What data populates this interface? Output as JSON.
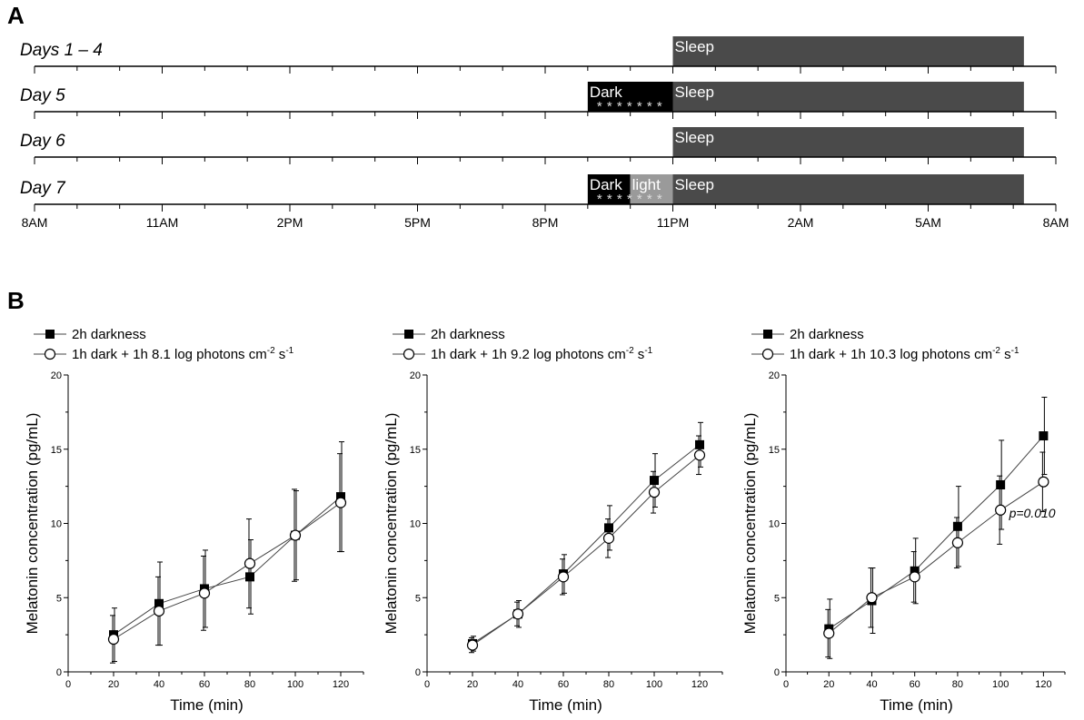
{
  "panel_labels": {
    "a": "A",
    "b": "B"
  },
  "colors": {
    "bar_dark": "#000000",
    "bar_light": "#9a9a9a",
    "bar_sleep": "#4a4a4a",
    "line": "#444444",
    "axis": "#000000"
  },
  "schedule": {
    "start_hour": 8,
    "end_hour": 32,
    "tick_labels": [
      {
        "hour": 8,
        "label": "8AM"
      },
      {
        "hour": 11,
        "label": "11AM"
      },
      {
        "hour": 14,
        "label": "2PM"
      },
      {
        "hour": 17,
        "label": "5PM"
      },
      {
        "hour": 20,
        "label": "8PM"
      },
      {
        "hour": 23,
        "label": "11PM"
      },
      {
        "hour": 26,
        "label": "2AM"
      },
      {
        "hour": 29,
        "label": "5AM"
      },
      {
        "hour": 32,
        "label": "8AM"
      }
    ],
    "rows": [
      {
        "label": "Days 1 – 4",
        "blocks": [
          {
            "kind": "sleep",
            "start": 23,
            "end": 31.25,
            "text": "Sleep"
          }
        ],
        "stars": ""
      },
      {
        "label": "Day 5",
        "blocks": [
          {
            "kind": "dark",
            "start": 21,
            "end": 23,
            "text": "Dark"
          },
          {
            "kind": "sleep",
            "start": 23,
            "end": 31.25,
            "text": "Sleep"
          }
        ],
        "stars": "* * * * * * *"
      },
      {
        "label": "Day 6",
        "blocks": [
          {
            "kind": "sleep",
            "start": 23,
            "end": 31.25,
            "text": "Sleep"
          }
        ],
        "stars": ""
      },
      {
        "label": "Day 7",
        "blocks": [
          {
            "kind": "dark",
            "start": 21,
            "end": 22,
            "text": "Dark"
          },
          {
            "kind": "light",
            "start": 22,
            "end": 23,
            "text": "light"
          },
          {
            "kind": "sleep",
            "start": 23,
            "end": 31.25,
            "text": "Sleep"
          }
        ],
        "stars": "* * * * * * *"
      }
    ]
  },
  "chart_data": [
    {
      "type": "line",
      "xlabel": "Time (min)",
      "ylabel": "Melatonin concentration (pg/mL)",
      "xlim": [
        0,
        130
      ],
      "ylim": [
        0,
        20
      ],
      "xticks": [
        0,
        20,
        40,
        60,
        80,
        100,
        120
      ],
      "yticks": [
        0,
        5,
        10,
        15,
        20
      ],
      "x": [
        20,
        40,
        60,
        80,
        100,
        120
      ],
      "series": [
        {
          "name": "2h darkness",
          "marker": "filled-square",
          "values": [
            2.5,
            4.6,
            5.6,
            6.4,
            9.2,
            11.8
          ],
          "err": [
            1.8,
            2.8,
            2.6,
            2.5,
            3.0,
            3.7
          ]
        },
        {
          "name": "1h dark + 1h 8.1 log photons cm",
          "name_sup1": "-2",
          "name_mid": " s",
          "name_sup2": "-1",
          "marker": "open-circle",
          "values": [
            2.2,
            4.1,
            5.3,
            7.3,
            9.2,
            11.4
          ],
          "err": [
            1.6,
            2.3,
            2.5,
            3.0,
            3.1,
            3.3
          ]
        }
      ],
      "annotation": ""
    },
    {
      "type": "line",
      "xlabel": "Time (min)",
      "ylabel": "Melatonin concentration (pg/mL)",
      "xlim": [
        0,
        130
      ],
      "ylim": [
        0,
        20
      ],
      "xticks": [
        0,
        20,
        40,
        60,
        80,
        100,
        120
      ],
      "yticks": [
        0,
        5,
        10,
        15,
        20
      ],
      "x": [
        20,
        40,
        60,
        80,
        100,
        120
      ],
      "series": [
        {
          "name": "2h darkness",
          "marker": "filled-square",
          "values": [
            1.9,
            3.9,
            6.6,
            9.7,
            12.9,
            15.3
          ],
          "err": [
            0.5,
            0.9,
            1.3,
            1.5,
            1.8,
            1.5
          ]
        },
        {
          "name": "1h dark + 1h 9.2 log photons cm",
          "name_sup1": "-2",
          "name_mid": " s",
          "name_sup2": "-1",
          "marker": "open-circle",
          "values": [
            1.8,
            3.9,
            6.4,
            9.0,
            12.1,
            14.6
          ],
          "err": [
            0.5,
            0.8,
            1.2,
            1.3,
            1.4,
            1.3
          ]
        }
      ],
      "annotation": ""
    },
    {
      "type": "line",
      "xlabel": "Time (min)",
      "ylabel": "Melatonin concentration (pg/mL)",
      "xlim": [
        0,
        130
      ],
      "ylim": [
        0,
        20
      ],
      "xticks": [
        0,
        20,
        40,
        60,
        80,
        100,
        120
      ],
      "yticks": [
        0,
        5,
        10,
        15,
        20
      ],
      "x": [
        20,
        40,
        60,
        80,
        100,
        120
      ],
      "series": [
        {
          "name": "2h darkness",
          "marker": "filled-square",
          "values": [
            2.9,
            4.8,
            6.8,
            9.8,
            12.6,
            15.9
          ],
          "err": [
            2.0,
            2.2,
            2.2,
            2.7,
            3.0,
            2.6
          ]
        },
        {
          "name": "1h dark + 1h 10.3 log photons cm",
          "name_sup1": "-2",
          "name_mid": " s",
          "name_sup2": "-1",
          "marker": "open-circle",
          "values": [
            2.6,
            5.0,
            6.4,
            8.7,
            10.9,
            12.8
          ],
          "err": [
            1.6,
            2.0,
            1.7,
            1.7,
            2.3,
            2.0
          ]
        }
      ],
      "annotation": "p=0.010"
    }
  ]
}
